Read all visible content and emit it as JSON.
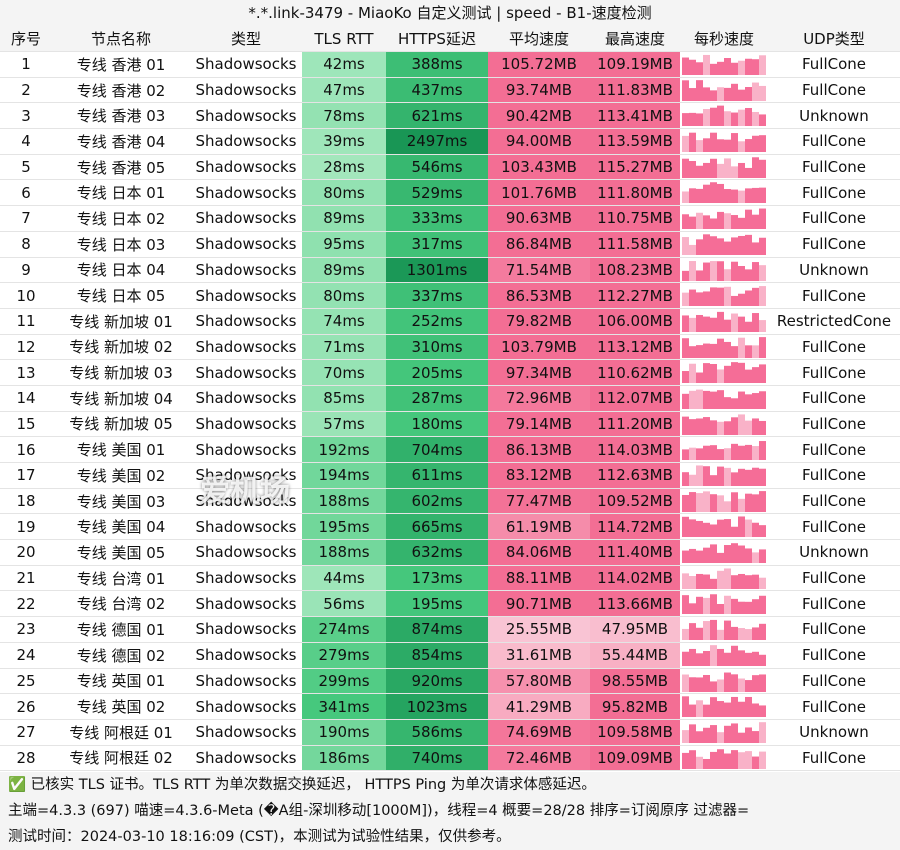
{
  "header": {
    "title": "*.*.link-3479 - MiaoKo 自定义测试 | speed - B1-速度检测"
  },
  "table": {
    "columns": [
      "序号",
      "节点名称",
      "类型",
      "TLS RTT",
      "HTTPS延迟",
      "平均速度",
      "最高速度",
      "每秒速度",
      "UDP类型"
    ],
    "rows": [
      [
        "1",
        "专线 香港 01",
        "Shadowsocks",
        "42ms",
        "388ms",
        "105.72MB",
        "109.19MB",
        "FullCone"
      ],
      [
        "2",
        "专线 香港 02",
        "Shadowsocks",
        "47ms",
        "437ms",
        "93.74MB",
        "111.83MB",
        "FullCone"
      ],
      [
        "3",
        "专线 香港 03",
        "Shadowsocks",
        "78ms",
        "621ms",
        "90.42MB",
        "113.41MB",
        "Unknown"
      ],
      [
        "4",
        "专线 香港 04",
        "Shadowsocks",
        "39ms",
        "2497ms",
        "94.00MB",
        "113.59MB",
        "FullCone"
      ],
      [
        "5",
        "专线 香港 05",
        "Shadowsocks",
        "28ms",
        "546ms",
        "103.43MB",
        "115.27MB",
        "FullCone"
      ],
      [
        "6",
        "专线 日本 01",
        "Shadowsocks",
        "80ms",
        "529ms",
        "101.76MB",
        "111.80MB",
        "FullCone"
      ],
      [
        "7",
        "专线 日本 02",
        "Shadowsocks",
        "89ms",
        "333ms",
        "90.63MB",
        "110.75MB",
        "FullCone"
      ],
      [
        "8",
        "专线 日本 03",
        "Shadowsocks",
        "95ms",
        "317ms",
        "86.84MB",
        "111.58MB",
        "FullCone"
      ],
      [
        "9",
        "专线 日本 04",
        "Shadowsocks",
        "89ms",
        "1301ms",
        "71.54MB",
        "108.23MB",
        "Unknown"
      ],
      [
        "10",
        "专线 日本 05",
        "Shadowsocks",
        "80ms",
        "337ms",
        "86.53MB",
        "112.27MB",
        "FullCone"
      ],
      [
        "11",
        "专线 新加坡 01",
        "Shadowsocks",
        "74ms",
        "252ms",
        "79.82MB",
        "106.00MB",
        "RestrictedCone"
      ],
      [
        "12",
        "专线 新加坡 02",
        "Shadowsocks",
        "71ms",
        "310ms",
        "103.79MB",
        "113.12MB",
        "FullCone"
      ],
      [
        "13",
        "专线 新加坡 03",
        "Shadowsocks",
        "70ms",
        "205ms",
        "97.34MB",
        "110.62MB",
        "FullCone"
      ],
      [
        "14",
        "专线 新加坡 04",
        "Shadowsocks",
        "85ms",
        "287ms",
        "72.96MB",
        "112.07MB",
        "FullCone"
      ],
      [
        "15",
        "专线 新加坡 05",
        "Shadowsocks",
        "57ms",
        "180ms",
        "79.14MB",
        "111.20MB",
        "FullCone"
      ],
      [
        "16",
        "专线 美国 01",
        "Shadowsocks",
        "192ms",
        "704ms",
        "86.13MB",
        "114.03MB",
        "FullCone"
      ],
      [
        "17",
        "专线 美国 02",
        "Shadowsocks",
        "194ms",
        "611ms",
        "83.12MB",
        "112.63MB",
        "FullCone"
      ],
      [
        "18",
        "专线 美国 03",
        "Shadowsocks",
        "188ms",
        "602ms",
        "77.47MB",
        "109.52MB",
        "FullCone"
      ],
      [
        "19",
        "专线 美国 04",
        "Shadowsocks",
        "195ms",
        "665ms",
        "61.19MB",
        "114.72MB",
        "FullCone"
      ],
      [
        "20",
        "专线 美国 05",
        "Shadowsocks",
        "188ms",
        "632ms",
        "84.06MB",
        "111.40MB",
        "Unknown"
      ],
      [
        "21",
        "专线 台湾 01",
        "Shadowsocks",
        "44ms",
        "173ms",
        "88.11MB",
        "114.02MB",
        "FullCone"
      ],
      [
        "22",
        "专线 台湾 02",
        "Shadowsocks",
        "56ms",
        "195ms",
        "90.71MB",
        "113.66MB",
        "FullCone"
      ],
      [
        "23",
        "专线 德国 01",
        "Shadowsocks",
        "274ms",
        "874ms",
        "25.55MB",
        "47.95MB",
        "FullCone"
      ],
      [
        "24",
        "专线 德国 02",
        "Shadowsocks",
        "279ms",
        "854ms",
        "31.61MB",
        "55.44MB",
        "FullCone"
      ],
      [
        "25",
        "专线 英国 01",
        "Shadowsocks",
        "299ms",
        "920ms",
        "57.80MB",
        "98.55MB",
        "FullCone"
      ],
      [
        "26",
        "专线 英国 02",
        "Shadowsocks",
        "341ms",
        "1023ms",
        "41.29MB",
        "95.82MB",
        "FullCone"
      ],
      [
        "27",
        "专线 阿根廷 01",
        "Shadowsocks",
        "190ms",
        "586ms",
        "74.69MB",
        "109.58MB",
        "Unknown"
      ],
      [
        "28",
        "专线 阿根廷 02",
        "Shadowsocks",
        "186ms",
        "740ms",
        "72.46MB",
        "109.09MB",
        "FullCone"
      ]
    ]
  },
  "footer": {
    "lines": [
      "✅ 已核实 TLS 证书。TLS RTT 为单次数据交换延迟， HTTPS Ping 为单次请求体感延迟。",
      "主端=4.3.3 (697) 喵速=4.3.6-Meta (�A组-深圳移动[1000M])，线程=4 概要=28/28 排序=订阅原序 过滤器=",
      "测试时间：2024-03-10 18:16:09 (CST)，本测试为试验性结果，仅供参考。"
    ]
  },
  "watermark": "爱机场"
}
